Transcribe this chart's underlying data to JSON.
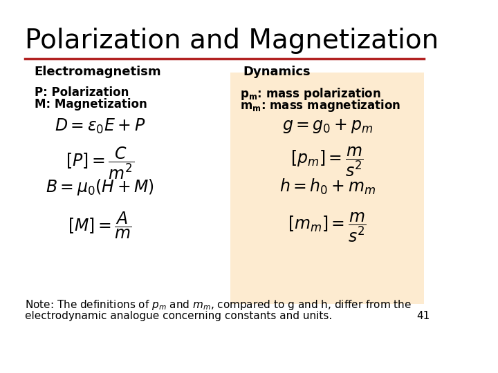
{
  "title": "Polarization and Magnetization",
  "title_fontsize": 28,
  "title_color": "#000000",
  "separator_color": "#b22222",
  "background_color": "#ffffff",
  "panel_bg_color": "#fdebd0",
  "col1_header": "Electromagnetism",
  "col2_header": "Dynamics",
  "col1_labels": [
    "P: Polarization",
    "M: Magnetization"
  ],
  "col2_labels": [
    "p\\u2098: mass polarization",
    "m\\u2098: mass magnetization"
  ],
  "col1_equations": [
    "D = \\varepsilon_0 E + P",
    "[P] = \\frac{C}{m^2}",
    "B = \\mu_0 (H + M)",
    "[M] = \\frac{A}{m}"
  ],
  "col2_equations": [
    "g = g_0 + p_m",
    "[p_m] = \\frac{m}{s^2}",
    "h = h_0 + m_m",
    "[m_m] = \\frac{m}{s^2}"
  ],
  "note_text": "Note: The definitions of p",
  "note_subscript_pm": "m",
  "note_middle": " and m",
  "note_subscript_mm": "m",
  "note_end": ", compared to g and h, differ from the\nelectrodynamic analogue concerning constants and units.",
  "page_number": "41",
  "header_fontsize": 13,
  "label_fontsize": 12,
  "eq_fontsize": 14,
  "note_fontsize": 11
}
